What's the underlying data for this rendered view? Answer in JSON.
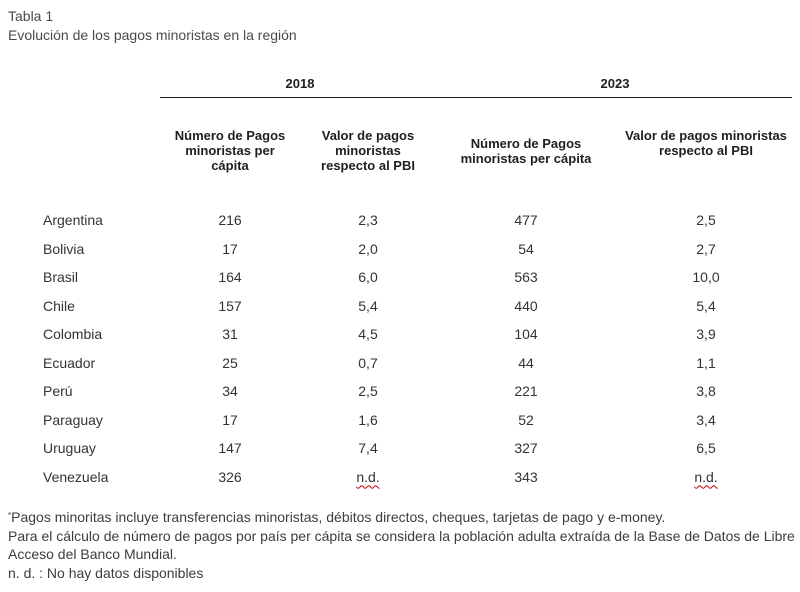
{
  "header": {
    "label": "Tabla 1",
    "title": "Evolución de los pagos minoristas en la región"
  },
  "table": {
    "years": [
      "2018",
      "2023"
    ],
    "columns": [
      "Número de Pagos minoristas per cápita",
      "Valor de pagos minoristas respecto al PBI",
      "Número de Pagos minoristas per cápita",
      "Valor de pagos minoristas respecto al PBI"
    ],
    "rows": [
      {
        "country": "Argentina",
        "values": [
          "216",
          "2,3",
          "477",
          "2,5"
        ]
      },
      {
        "country": "Bolivia",
        "values": [
          "17",
          "2,0",
          "54",
          "2,7"
        ]
      },
      {
        "country": "Brasil",
        "values": [
          "164",
          "6,0",
          "563",
          "10,0"
        ]
      },
      {
        "country": "Chile",
        "values": [
          "157",
          "5,4",
          "440",
          "5,4"
        ]
      },
      {
        "country": "Colombia",
        "values": [
          "31",
          "4,5",
          "104",
          "3,9"
        ]
      },
      {
        "country": "Ecuador",
        "values": [
          "25",
          "0,7",
          "44",
          "1,1"
        ]
      },
      {
        "country": "Perú",
        "values": [
          "34",
          "2,5",
          "221",
          "3,8"
        ]
      },
      {
        "country": "Paraguay",
        "values": [
          "17",
          "1,6",
          "52",
          "3,4"
        ]
      },
      {
        "country": "Uruguay",
        "values": [
          "147",
          "7,4",
          "327",
          "6,5"
        ]
      },
      {
        "country": "Venezuela",
        "values": [
          "326",
          "n.d.",
          "343",
          "n.d."
        ]
      }
    ]
  },
  "footnotes": {
    "marker": "*",
    "line1": "Pagos minoritas incluye transferencias minoristas, débitos directos, cheques, tarjetas de pago y e-money.",
    "line2": "Para el cálculo de número de pagos por país per cápita se considera la población adulta extraída de la Base de Datos de Libre Acceso del Banco Mundial.",
    "line3": "n. d. : No hay datos disponibles"
  }
}
